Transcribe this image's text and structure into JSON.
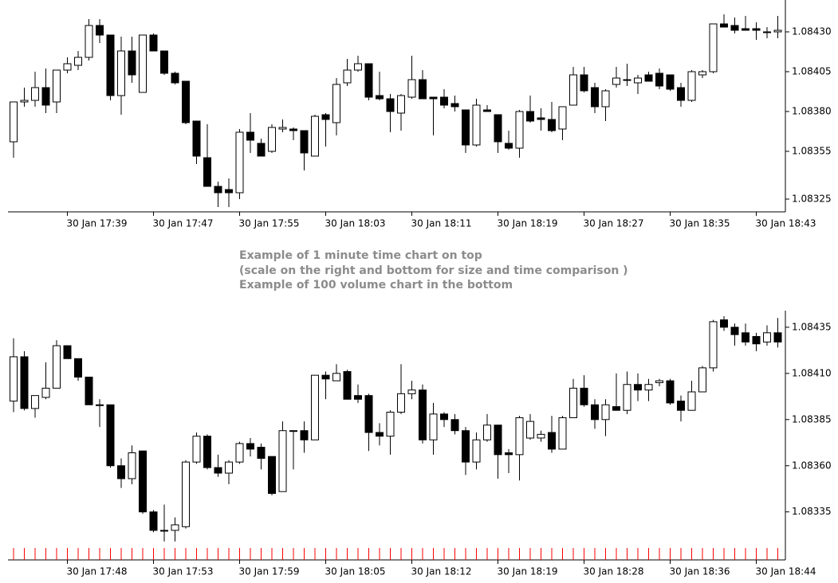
{
  "chart_data": [
    {
      "type": "candlestick",
      "categories": [
        null,
        null,
        null,
        null,
        null,
        "30 Jan 17:39",
        null,
        null,
        null,
        null,
        null,
        null,
        null,
        "30 Jan 17:47",
        null,
        null,
        null,
        null,
        null,
        null,
        null,
        "30 Jan 17:55",
        null,
        null,
        null,
        null,
        null,
        null,
        null,
        "30 Jan 18:03",
        null,
        null,
        null,
        null,
        null,
        null,
        null,
        "30 Jan 18:11",
        null,
        null,
        null,
        null,
        null,
        null,
        null,
        "30 Jan 18:19",
        null,
        null,
        null,
        null,
        null,
        null,
        null,
        "30 Jan 18:27",
        null,
        null,
        null,
        null,
        null,
        null,
        null,
        "30 Jan 18:35",
        null,
        null,
        null,
        null,
        null,
        null,
        null,
        "30 Jan 18:43",
        null,
        null
      ],
      "open": [
        1.08361,
        1.08386,
        1.08387,
        1.08395,
        1.08386,
        1.08406,
        1.08409,
        1.08414,
        1.08434,
        1.08428,
        1.0839,
        1.08418,
        1.08392,
        1.08428,
        1.08418,
        1.08404,
        1.08399,
        1.08374,
        1.08351,
        1.08333,
        1.08331,
        1.08329,
        1.08367,
        1.0836,
        1.08355,
        1.08369,
        1.08369,
        1.08368,
        1.08352,
        1.08378,
        1.08373,
        1.08398,
        1.08406,
        1.0841,
        1.0839,
        1.08388,
        1.08379,
        1.08389,
        1.084,
        1.08389,
        1.08389,
        1.08385,
        1.08381,
        1.08359,
        1.08381,
        1.08378,
        1.0836,
        1.08357,
        1.0838,
        1.08376,
        1.08375,
        1.08369,
        1.08384,
        1.08403,
        1.08395,
        1.08383,
        1.08397,
        1.084,
        1.08398,
        1.08403,
        1.08404,
        1.08403,
        1.08395,
        1.08387,
        1.08403,
        1.08405,
        1.08435,
        1.08434,
        1.08432,
        1.08432,
        1.0843,
        1.0843
      ],
      "high": [
        1.08386,
        1.08395,
        1.08405,
        1.08407,
        1.08406,
        1.08414,
        1.08418,
        1.08438,
        1.08438,
        1.08428,
        1.08427,
        1.08427,
        1.08428,
        1.08429,
        1.08418,
        1.08405,
        1.08399,
        1.08374,
        1.08372,
        1.08336,
        1.08338,
        1.08369,
        1.08379,
        1.08363,
        1.08372,
        1.08375,
        1.0837,
        1.08368,
        1.08378,
        1.08379,
        1.08401,
        1.08413,
        1.08415,
        1.0841,
        1.08405,
        1.08391,
        1.08391,
        1.08415,
        1.08406,
        1.08389,
        1.08394,
        1.0839,
        1.08381,
        1.08388,
        1.08384,
        1.08378,
        1.08368,
        1.08381,
        1.0839,
        1.08382,
        1.08386,
        1.08383,
        1.08408,
        1.08408,
        1.08398,
        1.08394,
        1.08408,
        1.0841,
        1.08403,
        1.08405,
        1.08407,
        1.08403,
        1.08398,
        1.08406,
        1.08406,
        1.08435,
        1.08441,
        1.08439,
        1.0844,
        1.08436,
        1.08433,
        1.0844
      ],
      "low": [
        1.08351,
        1.08383,
        1.08383,
        1.08379,
        1.08379,
        1.08404,
        1.08406,
        1.08412,
        1.08423,
        1.08387,
        1.08378,
        1.08398,
        1.08392,
        1.08418,
        1.08403,
        1.08397,
        1.08372,
        1.08347,
        1.08333,
        1.0832,
        1.0832,
        1.08325,
        1.08354,
        1.08352,
        1.08354,
        1.08367,
        1.08362,
        1.08343,
        1.08352,
        1.08358,
        1.08365,
        1.08396,
        1.08405,
        1.08387,
        1.08387,
        1.08367,
        1.08368,
        1.08388,
        1.08388,
        1.08365,
        1.08382,
        1.0838,
        1.08354,
        1.08358,
        1.0838,
        1.08354,
        1.08356,
        1.08351,
        1.08373,
        1.08368,
        1.08367,
        1.08362,
        1.08384,
        1.08392,
        1.08379,
        1.08374,
        1.08395,
        1.08396,
        1.08391,
        1.08399,
        1.08394,
        1.08393,
        1.08383,
        1.08386,
        1.08401,
        1.08404,
        1.08433,
        1.08429,
        1.08431,
        1.08425,
        1.08426,
        1.08426
      ],
      "close": [
        1.08386,
        1.08387,
        1.08395,
        1.08384,
        1.08406,
        1.0841,
        1.08414,
        1.08434,
        1.08428,
        1.0839,
        1.08418,
        1.08403,
        1.08428,
        1.08418,
        1.08404,
        1.08398,
        1.08373,
        1.08352,
        1.08333,
        1.08329,
        1.08329,
        1.08367,
        1.08362,
        1.08352,
        1.0837,
        1.0837,
        1.08368,
        1.08354,
        1.08377,
        1.08375,
        1.08397,
        1.08406,
        1.0841,
        1.08389,
        1.08388,
        1.0838,
        1.0839,
        1.084,
        1.08388,
        1.08388,
        1.08384,
        1.08383,
        1.08359,
        1.08384,
        1.0838,
        1.08361,
        1.08357,
        1.0838,
        1.08374,
        1.08375,
        1.08368,
        1.08383,
        1.08403,
        1.08393,
        1.08383,
        1.08393,
        1.08401,
        1.084,
        1.08401,
        1.08399,
        1.08396,
        1.08394,
        1.08387,
        1.08405,
        1.08405,
        1.08435,
        1.08433,
        1.08431,
        1.08431,
        1.08431,
        1.0843,
        1.08431
      ],
      "ylim": [
        1.08317,
        1.0845
      ],
      "yticks": [
        {
          "value": 1.0843,
          "label": "1.08430"
        },
        1.08405,
        {
          "value": 1.0838,
          "label": "1.08380"
        },
        1.08355,
        1.08325
      ],
      "up_color": "#ffffff",
      "down_color": "#000000",
      "line_color": "#000000"
    },
    {
      "type": "candlestick",
      "categories": [
        null,
        null,
        null,
        null,
        null,
        "30 Jan 17:48",
        null,
        null,
        null,
        null,
        null,
        null,
        null,
        "30 Jan 17:53",
        null,
        null,
        null,
        null,
        null,
        null,
        null,
        "30 Jan 17:59",
        null,
        null,
        null,
        null,
        null,
        null,
        null,
        "30 Jan 18:05",
        null,
        null,
        null,
        null,
        null,
        null,
        null,
        "30 Jan 18:12",
        null,
        null,
        null,
        null,
        null,
        null,
        null,
        "30 Jan 18:19",
        null,
        null,
        null,
        null,
        null,
        null,
        null,
        "30 Jan 18:28",
        null,
        null,
        null,
        null,
        null,
        null,
        null,
        "30 Jan 18:36",
        null,
        null,
        null,
        null,
        null,
        null,
        null,
        "30 Jan 18:44",
        null,
        null
      ],
      "open": [
        1.08395,
        1.08419,
        1.08391,
        1.08397,
        1.08402,
        1.08425,
        1.08418,
        1.08408,
        1.08393,
        1.08393,
        1.0836,
        1.08353,
        1.08368,
        1.08335,
        1.08325,
        1.08325,
        1.08327,
        1.08362,
        1.08376,
        1.08359,
        1.08356,
        1.08362,
        1.08372,
        1.0837,
        1.08365,
        1.08346,
        1.08379,
        1.08379,
        1.08374,
        1.08409,
        1.08406,
        1.08411,
        1.08398,
        1.08398,
        1.08378,
        1.08376,
        1.08389,
        1.08399,
        1.08401,
        1.08374,
        1.08388,
        1.08385,
        1.08379,
        1.08362,
        1.08374,
        1.08382,
        1.08367,
        1.08366,
        1.08375,
        1.08375,
        1.08378,
        1.08369,
        1.08386,
        1.08402,
        1.08393,
        1.08385,
        1.08392,
        1.0839,
        1.08404,
        1.08401,
        1.08405,
        1.08406,
        1.08395,
        1.0839,
        1.084,
        1.08413,
        1.08439,
        1.08435,
        1.08432,
        1.0843,
        1.08427,
        1.08432
      ],
      "high": [
        1.08429,
        1.08422,
        1.08398,
        1.08416,
        1.08428,
        1.08425,
        1.08418,
        1.08408,
        1.08396,
        1.08393,
        1.08364,
        1.08371,
        1.08368,
        1.08336,
        1.08339,
        1.08332,
        1.08363,
        1.08378,
        1.08377,
        1.08366,
        1.08363,
        1.08373,
        1.08375,
        1.08372,
        1.08365,
        1.08384,
        1.08379,
        1.08384,
        1.08409,
        1.08411,
        1.08415,
        1.08412,
        1.08404,
        1.08399,
        1.08383,
        1.0839,
        1.08415,
        1.08406,
        1.08404,
        1.08394,
        1.08389,
        1.08388,
        1.08381,
        1.08378,
        1.08388,
        1.08382,
        1.08369,
        1.08387,
        1.08388,
        1.08379,
        1.08387,
        1.08387,
        1.08407,
        1.08409,
        1.08396,
        1.08396,
        1.0841,
        1.08411,
        1.0841,
        1.08407,
        1.08407,
        1.08407,
        1.08398,
        1.08406,
        1.08414,
        1.08439,
        1.08441,
        1.08437,
        1.08437,
        1.08432,
        1.08436,
        1.0844
      ],
      "low": [
        1.08389,
        1.0839,
        1.08386,
        1.08396,
        1.08402,
        1.08418,
        1.08406,
        1.08393,
        1.08381,
        1.08359,
        1.08348,
        1.0835,
        1.08334,
        1.08324,
        1.08319,
        1.08319,
        1.08326,
        1.08361,
        1.08358,
        1.08354,
        1.0835,
        1.08361,
        1.08365,
        1.08358,
        1.08344,
        1.08346,
        1.08358,
        1.08367,
        1.08374,
        1.08396,
        1.08406,
        1.08396,
        1.08394,
        1.08368,
        1.08371,
        1.08366,
        1.08388,
        1.08396,
        1.08372,
        1.08366,
        1.08381,
        1.08377,
        1.08355,
        1.08358,
        1.08373,
        1.08353,
        1.08356,
        1.08352,
        1.08374,
        1.08373,
        1.08367,
        1.08369,
        1.08386,
        1.08392,
        1.0838,
        1.08376,
        1.0839,
        1.08388,
        1.08395,
        1.08395,
        1.08403,
        1.08393,
        1.08384,
        1.0839,
        1.084,
        1.08411,
        1.08433,
        1.08425,
        1.08425,
        1.08422,
        1.08425,
        1.08424
      ],
      "close": [
        1.08419,
        1.08391,
        1.08398,
        1.08402,
        1.08425,
        1.08418,
        1.08408,
        1.08393,
        1.08393,
        1.0836,
        1.08353,
        1.08367,
        1.08335,
        1.08325,
        1.08325,
        1.08328,
        1.08362,
        1.08376,
        1.08359,
        1.08356,
        1.08362,
        1.08372,
        1.08369,
        1.08364,
        1.08345,
        1.08379,
        1.08379,
        1.08374,
        1.08409,
        1.08407,
        1.0841,
        1.08396,
        1.08396,
        1.08378,
        1.08376,
        1.08389,
        1.08399,
        1.08401,
        1.08374,
        1.08388,
        1.08385,
        1.08379,
        1.08362,
        1.08374,
        1.08382,
        1.08366,
        1.08366,
        1.08386,
        1.08384,
        1.08377,
        1.08369,
        1.08386,
        1.08402,
        1.08393,
        1.08385,
        1.08393,
        1.0839,
        1.08404,
        1.08401,
        1.08404,
        1.08406,
        1.08394,
        1.0839,
        1.084,
        1.08413,
        1.08438,
        1.08435,
        1.08431,
        1.08427,
        1.08426,
        1.08432,
        1.08427
      ],
      "ylim": [
        1.08309,
        1.08444
      ],
      "yticks": [
        1.08435,
        {
          "value": 1.0841,
          "label": "1.08410"
        },
        1.08385,
        {
          "value": 1.0836,
          "label": "1.08360"
        },
        1.08335
      ],
      "up_color": "#ffffff",
      "down_color": "#000000",
      "line_color": "#000000",
      "bar_marker_color": "#ff0000"
    }
  ],
  "caption": [
    "Example of 1 minute time chart on top",
    "(scale on the right and bottom for size and time comparison )",
    "Example of 100 volume chart in the bottom"
  ]
}
